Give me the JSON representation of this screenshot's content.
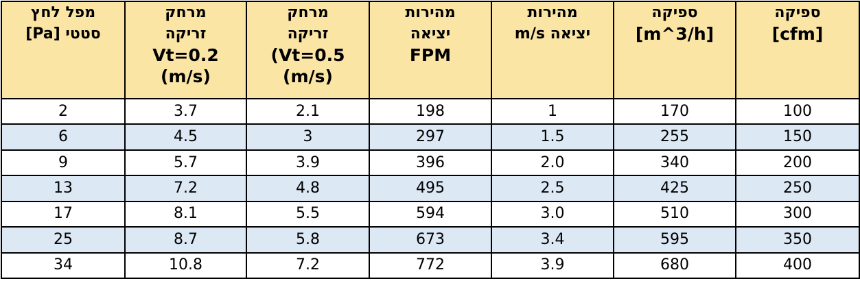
{
  "table": {
    "columns": [
      {
        "key": "static-pressure",
        "lines": [
          "מפל לחץ",
          "סטטי [Pa]"
        ]
      },
      {
        "key": "throw-vt02",
        "lines": [
          "מרחק",
          "זריקה",
          "Vt=0.2",
          "(m/s)"
        ]
      },
      {
        "key": "throw-vt05",
        "lines": [
          "מרחק",
          "זריקה",
          "(Vt=0.5",
          "(m/s)"
        ]
      },
      {
        "key": "outlet-velocity-fpm",
        "lines": [
          "מהירות",
          "יציאה",
          "FPM"
        ]
      },
      {
        "key": "outlet-velocity-ms",
        "lines": [
          "מהירות",
          "יציאה m/s"
        ]
      },
      {
        "key": "flow-m3h",
        "lines": [
          "ספיקה",
          "[m^3/h]"
        ]
      },
      {
        "key": "flow-cfm",
        "lines": [
          "ספיקה",
          "[cfm]"
        ]
      }
    ],
    "rows": [
      [
        "2",
        "3.7",
        "2.1",
        "198",
        "1",
        "170",
        "100"
      ],
      [
        "6",
        "4.5",
        "3",
        "297",
        "1.5",
        "255",
        "150"
      ],
      [
        "9",
        "5.7",
        "3.9",
        "396",
        "2.0",
        "340",
        "200"
      ],
      [
        "13",
        "7.2",
        "4.8",
        "495",
        "2.5",
        "425",
        "250"
      ],
      [
        "17",
        "8.1",
        "5.5",
        "594",
        "3.0",
        "510",
        "300"
      ],
      [
        "25",
        "8.7",
        "5.8",
        "673",
        "3.4",
        "595",
        "350"
      ],
      [
        "34",
        "10.8",
        "7.2",
        "772",
        "3.9",
        "680",
        "400"
      ]
    ]
  },
  "colors": {
    "header_bg": "#fbe5a4",
    "alt_row_bg": "#dde8f5",
    "border": "#000000"
  }
}
